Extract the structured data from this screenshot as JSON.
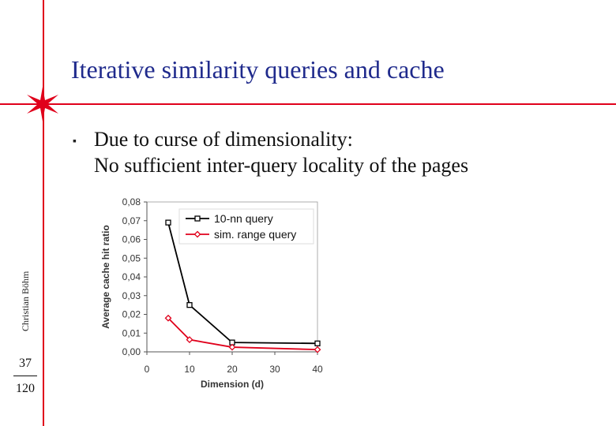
{
  "slide": {
    "title": "Iterative similarity queries and cache",
    "bullet_line1": "Due to curse of dimensionality:",
    "bullet_line2": "No sufficient inter-query locality of the pages",
    "author": "Christian Böhm",
    "page_current": "37",
    "page_total": "120",
    "accent_color": "#e0001b",
    "title_color": "#1f2a8c"
  },
  "chart_data": {
    "type": "line",
    "xlabel": "Dimension (d)",
    "ylabel": "Average cache hit ratio",
    "xlim": [
      0,
      40
    ],
    "ylim": [
      0,
      0.08
    ],
    "x_ticks": [
      "0",
      "10",
      "20",
      "30",
      "40"
    ],
    "y_ticks": [
      "0,00",
      "0,01",
      "0,02",
      "0,03",
      "0,04",
      "0,05",
      "0,06",
      "0,07",
      "0,08"
    ],
    "legend_position": "top-right",
    "series": [
      {
        "name": "10-nn query",
        "color": "#000000",
        "marker": "square",
        "x": [
          5,
          10,
          20,
          40
        ],
        "y": [
          0.069,
          0.025,
          0.005,
          0.0045
        ]
      },
      {
        "name": "sim. range query",
        "color": "#e0001b",
        "marker": "diamond",
        "x": [
          5,
          10,
          20,
          40
        ],
        "y": [
          0.018,
          0.0065,
          0.0025,
          0.0012
        ]
      }
    ]
  }
}
